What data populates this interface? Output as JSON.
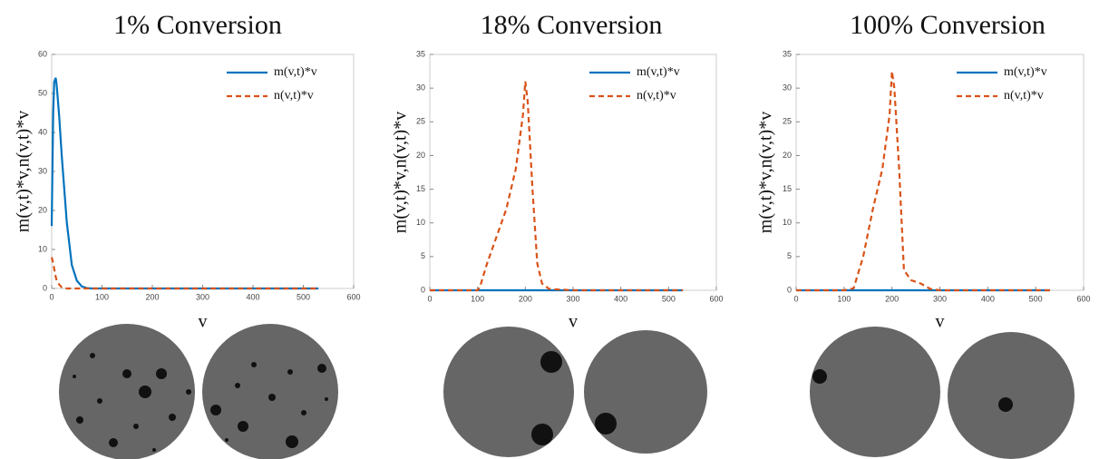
{
  "chart_data": [
    {
      "type": "line",
      "title": "1% Conversion",
      "xlabel": "v",
      "ylabel": "m(v,t)*v,n(v,t)*v",
      "x": [
        0,
        3,
        5,
        8,
        10,
        15,
        20,
        30,
        40,
        50,
        60,
        70,
        80,
        100,
        200,
        300,
        400,
        500,
        530
      ],
      "series": [
        {
          "name": "m(v,t)*v",
          "color": "#0072bd",
          "dash": false,
          "values": [
            16,
            45,
            53,
            54,
            52,
            44,
            34,
            17,
            6,
            2,
            0.5,
            0.1,
            0,
            0,
            0,
            0,
            0,
            0,
            0
          ]
        },
        {
          "name": "n(v,t)*v",
          "color": "#d95319",
          "dash": true,
          "values": [
            8,
            6.5,
            5,
            3,
            2,
            1,
            0.3,
            0,
            0,
            0,
            0,
            0,
            0,
            0,
            0,
            0,
            0,
            0,
            0
          ]
        }
      ],
      "xlim": [
        0,
        600
      ],
      "xticks": [
        0,
        100,
        200,
        300,
        400,
        500,
        600
      ],
      "ylim": [
        0,
        60
      ],
      "yticks": [
        0,
        10,
        20,
        30,
        40,
        50,
        60
      ],
      "legend": "upper right"
    },
    {
      "type": "line",
      "title": "18% Conversion",
      "xlabel": "v",
      "ylabel": "m(v,t)*v,n(v,t)*v",
      "x": [
        0,
        100,
        105,
        120,
        140,
        160,
        180,
        195,
        200,
        205,
        215,
        225,
        235,
        250,
        300,
        400,
        500,
        530
      ],
      "series": [
        {
          "name": "m(v,t)*v",
          "color": "#0072bd",
          "dash": false,
          "values": [
            0,
            0,
            0,
            0,
            0,
            0,
            0,
            0,
            0,
            0,
            0,
            0,
            0,
            0,
            0,
            0,
            0,
            0
          ]
        },
        {
          "name": "n(v,t)*v",
          "color": "#d95319",
          "dash": true,
          "values": [
            0,
            0,
            0.5,
            4,
            8,
            12,
            18,
            26,
            31,
            28,
            15,
            4,
            1,
            0.2,
            0,
            0,
            0,
            0
          ]
        }
      ],
      "xlim": [
        0,
        600
      ],
      "xticks": [
        0,
        100,
        200,
        300,
        400,
        500,
        600
      ],
      "ylim": [
        0,
        35
      ],
      "yticks": [
        0,
        5,
        10,
        15,
        20,
        25,
        30,
        35
      ],
      "legend": "upper right"
    },
    {
      "type": "line",
      "title": "100% Conversion",
      "xlabel": "v",
      "ylabel": "m(v,t)*v,n(v,t)*v",
      "x": [
        0,
        100,
        120,
        140,
        160,
        180,
        195,
        200,
        205,
        215,
        225,
        240,
        260,
        280,
        300,
        400,
        500,
        530
      ],
      "series": [
        {
          "name": "m(v,t)*v",
          "color": "#0072bd",
          "dash": false,
          "values": [
            0,
            0,
            0,
            0,
            0,
            0,
            0,
            0,
            0,
            0,
            0,
            0,
            0,
            0,
            0,
            0,
            0,
            0
          ]
        },
        {
          "name": "n(v,t)*v",
          "color": "#d95319",
          "dash": true,
          "values": [
            0,
            0,
            0.3,
            5,
            12,
            18,
            26,
            32.5,
            30,
            18,
            3,
            1.5,
            1,
            0.2,
            0,
            0,
            0,
            0
          ]
        }
      ],
      "xlim": [
        0,
        600
      ],
      "xticks": [
        0,
        100,
        200,
        300,
        400,
        500,
        600
      ],
      "ylim": [
        0,
        35
      ],
      "yticks": [
        0,
        5,
        10,
        15,
        20,
        25,
        30,
        35
      ],
      "legend": "upper right"
    }
  ]
}
